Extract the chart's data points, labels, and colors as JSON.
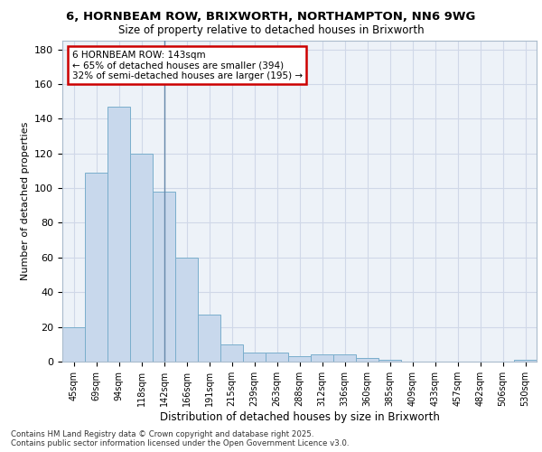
{
  "title1": "6, HORNBEAM ROW, BRIXWORTH, NORTHAMPTON, NN6 9WG",
  "title2": "Size of property relative to detached houses in Brixworth",
  "xlabel": "Distribution of detached houses by size in Brixworth",
  "ylabel": "Number of detached properties",
  "categories": [
    "45sqm",
    "69sqm",
    "94sqm",
    "118sqm",
    "142sqm",
    "166sqm",
    "191sqm",
    "215sqm",
    "239sqm",
    "263sqm",
    "288sqm",
    "312sqm",
    "336sqm",
    "360sqm",
    "385sqm",
    "409sqm",
    "433sqm",
    "457sqm",
    "482sqm",
    "506sqm",
    "530sqm"
  ],
  "values": [
    20,
    109,
    147,
    120,
    98,
    60,
    27,
    10,
    5,
    5,
    3,
    4,
    4,
    2,
    1,
    0,
    0,
    0,
    0,
    0,
    1
  ],
  "bar_color": "#c8d8ec",
  "bar_edge_color": "#7aaecc",
  "annotation_text": "6 HORNBEAM ROW: 143sqm\n← 65% of detached houses are smaller (394)\n32% of semi-detached houses are larger (195) →",
  "annotation_box_color": "#ffffff",
  "annotation_box_edge": "#cc0000",
  "property_line_color": "#6688aa",
  "property_line_x": 4.0,
  "ylim": [
    0,
    185
  ],
  "yticks": [
    0,
    20,
    40,
    60,
    80,
    100,
    120,
    140,
    160,
    180
  ],
  "grid_color": "#d0d8e8",
  "background_color": "#edf2f8",
  "footer1": "Contains HM Land Registry data © Crown copyright and database right 2025.",
  "footer2": "Contains public sector information licensed under the Open Government Licence v3.0."
}
